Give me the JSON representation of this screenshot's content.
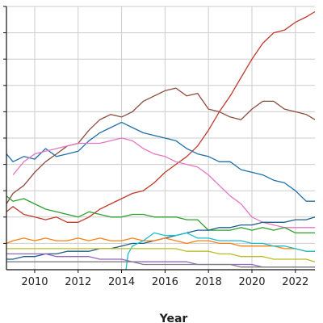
{
  "chart_data": {
    "type": "line",
    "title": "",
    "xlabel": "Year",
    "ylabel": "",
    "x_ticks": [
      "2010",
      "2012",
      "2014",
      "2016",
      "2018",
      "2020",
      "2022"
    ],
    "xlim": [
      2008.7,
      2022.9
    ],
    "ylim": [
      0,
      100
    ],
    "grid": true,
    "series": [
      {
        "color": "#c0392b",
        "points": [
          [
            2008.7,
            22
          ],
          [
            2009,
            24
          ],
          [
            2009.5,
            21
          ],
          [
            2010,
            20
          ],
          [
            2010.5,
            19
          ],
          [
            2011,
            20
          ],
          [
            2011.5,
            18
          ],
          [
            2012,
            18
          ],
          [
            2012.5,
            20
          ],
          [
            2013,
            23
          ],
          [
            2013.5,
            25
          ],
          [
            2014,
            27
          ],
          [
            2014.5,
            29
          ],
          [
            2015,
            30
          ],
          [
            2015.5,
            33
          ],
          [
            2016,
            37
          ],
          [
            2016.5,
            40
          ],
          [
            2017,
            43
          ],
          [
            2017.5,
            47
          ],
          [
            2018,
            53
          ],
          [
            2018.5,
            60
          ],
          [
            2019,
            66
          ],
          [
            2019.5,
            73
          ],
          [
            2020,
            80
          ],
          [
            2020.5,
            86
          ],
          [
            2021,
            90
          ],
          [
            2021.5,
            91
          ],
          [
            2022,
            94
          ],
          [
            2022.5,
            96
          ],
          [
            2022.9,
            98
          ]
        ]
      },
      {
        "color": "#8b4c3c",
        "points": [
          [
            2008.7,
            25
          ],
          [
            2009,
            29
          ],
          [
            2009.5,
            32
          ],
          [
            2010,
            37
          ],
          [
            2010.5,
            41
          ],
          [
            2011,
            44
          ],
          [
            2011.5,
            47
          ],
          [
            2012,
            48
          ],
          [
            2012.5,
            53
          ],
          [
            2013,
            57
          ],
          [
            2013.5,
            59
          ],
          [
            2014,
            58
          ],
          [
            2014.5,
            60
          ],
          [
            2015,
            64
          ],
          [
            2015.5,
            66
          ],
          [
            2016,
            68
          ],
          [
            2016.5,
            69
          ],
          [
            2017,
            66
          ],
          [
            2017.5,
            67
          ],
          [
            2018,
            61
          ],
          [
            2018.5,
            60
          ],
          [
            2019,
            58
          ],
          [
            2019.5,
            57
          ],
          [
            2020,
            61
          ],
          [
            2020.5,
            64
          ],
          [
            2021,
            64
          ],
          [
            2021.5,
            61
          ],
          [
            2022,
            60
          ],
          [
            2022.5,
            59
          ],
          [
            2022.9,
            57
          ]
        ]
      },
      {
        "color": "#1f6fa8",
        "points": [
          [
            2008.7,
            44
          ],
          [
            2009,
            41
          ],
          [
            2009.5,
            43
          ],
          [
            2010,
            42
          ],
          [
            2010.5,
            46
          ],
          [
            2011,
            43
          ],
          [
            2011.5,
            44
          ],
          [
            2012,
            45
          ],
          [
            2012.5,
            49
          ],
          [
            2013,
            52
          ],
          [
            2013.5,
            54
          ],
          [
            2014,
            56
          ],
          [
            2014.5,
            54
          ],
          [
            2015,
            52
          ],
          [
            2015.5,
            51
          ],
          [
            2016,
            50
          ],
          [
            2016.5,
            49
          ],
          [
            2017,
            46
          ],
          [
            2017.5,
            44
          ],
          [
            2018,
            43
          ],
          [
            2018.5,
            41
          ],
          [
            2019,
            41
          ],
          [
            2019.5,
            38
          ],
          [
            2020,
            37
          ],
          [
            2020.5,
            36
          ],
          [
            2021,
            34
          ],
          [
            2021.5,
            33
          ],
          [
            2022,
            30
          ],
          [
            2022.5,
            26
          ],
          [
            2022.9,
            26
          ]
        ]
      },
      {
        "color": "#e377c2",
        "points": [
          [
            2009,
            36
          ],
          [
            2009.5,
            41
          ],
          [
            2010,
            44
          ],
          [
            2010.5,
            45
          ],
          [
            2011,
            46
          ],
          [
            2011.5,
            47
          ],
          [
            2012,
            48
          ],
          [
            2012.5,
            48
          ],
          [
            2013,
            48
          ],
          [
            2013.5,
            49
          ],
          [
            2014,
            50
          ],
          [
            2014.5,
            49
          ],
          [
            2015,
            46
          ],
          [
            2015.5,
            44
          ],
          [
            2016,
            43
          ],
          [
            2016.5,
            41
          ],
          [
            2017,
            40
          ],
          [
            2017.5,
            39
          ],
          [
            2018,
            36
          ],
          [
            2018.5,
            32
          ],
          [
            2019,
            28
          ],
          [
            2019.5,
            25
          ],
          [
            2020,
            20
          ],
          [
            2020.5,
            18
          ],
          [
            2021,
            17
          ],
          [
            2021.5,
            16
          ],
          [
            2022,
            16
          ],
          [
            2022.5,
            16
          ],
          [
            2022.9,
            16
          ]
        ]
      },
      {
        "color": "#2ca02c",
        "points": [
          [
            2008.7,
            28
          ],
          [
            2009,
            26
          ],
          [
            2009.5,
            27
          ],
          [
            2010,
            25
          ],
          [
            2010.5,
            23
          ],
          [
            2011,
            22
          ],
          [
            2011.5,
            21
          ],
          [
            2012,
            20
          ],
          [
            2012.5,
            22
          ],
          [
            2013,
            21
          ],
          [
            2013.5,
            20
          ],
          [
            2014,
            20
          ],
          [
            2014.5,
            21
          ],
          [
            2015,
            21
          ],
          [
            2015.5,
            20
          ],
          [
            2016,
            20
          ],
          [
            2016.5,
            20
          ],
          [
            2017,
            19
          ],
          [
            2017.5,
            19
          ],
          [
            2018,
            15
          ],
          [
            2018.5,
            15
          ],
          [
            2019,
            15
          ],
          [
            2019.5,
            16
          ],
          [
            2020,
            15
          ],
          [
            2020.5,
            16
          ],
          [
            2021,
            15
          ],
          [
            2021.5,
            16
          ],
          [
            2022,
            14
          ],
          [
            2022.5,
            14
          ],
          [
            2022.9,
            14
          ]
        ]
      },
      {
        "color": "#1b5e8a",
        "points": [
          [
            2008.7,
            4
          ],
          [
            2009,
            4
          ],
          [
            2009.5,
            5
          ],
          [
            2010,
            5
          ],
          [
            2010.5,
            6
          ],
          [
            2011,
            6
          ],
          [
            2011.5,
            7
          ],
          [
            2012,
            7
          ],
          [
            2012.5,
            7
          ],
          [
            2013,
            8
          ],
          [
            2013.5,
            8
          ],
          [
            2014,
            9
          ],
          [
            2014.5,
            10
          ],
          [
            2015,
            10
          ],
          [
            2015.5,
            11
          ],
          [
            2016,
            12
          ],
          [
            2016.5,
            13
          ],
          [
            2017,
            14
          ],
          [
            2017.5,
            15
          ],
          [
            2018,
            15
          ],
          [
            2018.5,
            16
          ],
          [
            2019,
            16
          ],
          [
            2019.5,
            17
          ],
          [
            2020,
            17
          ],
          [
            2020.5,
            18
          ],
          [
            2021,
            18
          ],
          [
            2021.5,
            18
          ],
          [
            2022,
            19
          ],
          [
            2022.5,
            19
          ],
          [
            2022.9,
            20
          ]
        ]
      },
      {
        "color": "#ff7f0e",
        "points": [
          [
            2008.7,
            10
          ],
          [
            2009,
            11
          ],
          [
            2009.5,
            12
          ],
          [
            2010,
            11
          ],
          [
            2010.5,
            12
          ],
          [
            2011,
            11
          ],
          [
            2011.5,
            11
          ],
          [
            2012,
            12
          ],
          [
            2012.5,
            11
          ],
          [
            2013,
            12
          ],
          [
            2013.5,
            11
          ],
          [
            2014,
            11
          ],
          [
            2014.5,
            12
          ],
          [
            2015,
            11
          ],
          [
            2015.5,
            11
          ],
          [
            2016,
            12
          ],
          [
            2016.5,
            11
          ],
          [
            2017,
            10
          ],
          [
            2017.5,
            11
          ],
          [
            2018,
            11
          ],
          [
            2018.5,
            10
          ],
          [
            2019,
            10
          ],
          [
            2019.5,
            9
          ],
          [
            2020,
            9
          ],
          [
            2020.5,
            9
          ],
          [
            2021,
            9
          ],
          [
            2021.5,
            8
          ],
          [
            2022,
            8
          ],
          [
            2022.5,
            7
          ],
          [
            2022.9,
            7
          ]
        ]
      },
      {
        "color": "#17becf",
        "points": [
          [
            2014.2,
            0
          ],
          [
            2014.3,
            6
          ],
          [
            2014.5,
            9
          ],
          [
            2015,
            11
          ],
          [
            2015.5,
            14
          ],
          [
            2016,
            13
          ],
          [
            2016.5,
            13
          ],
          [
            2017,
            14
          ],
          [
            2017.5,
            12
          ],
          [
            2018,
            12
          ],
          [
            2018.5,
            11
          ],
          [
            2019,
            11
          ],
          [
            2019.5,
            11
          ],
          [
            2020,
            10
          ],
          [
            2020.5,
            10
          ],
          [
            2021,
            9
          ],
          [
            2021.5,
            9
          ],
          [
            2022,
            8
          ],
          [
            2022.5,
            7
          ],
          [
            2022.9,
            7
          ]
        ]
      },
      {
        "color": "#bcbd22",
        "points": [
          [
            2008.7,
            8
          ],
          [
            2009,
            8
          ],
          [
            2009.5,
            8
          ],
          [
            2010,
            8
          ],
          [
            2010.5,
            8
          ],
          [
            2011,
            8
          ],
          [
            2011.5,
            8
          ],
          [
            2012,
            8
          ],
          [
            2012.5,
            8
          ],
          [
            2013,
            8
          ],
          [
            2013.5,
            8
          ],
          [
            2014,
            8
          ],
          [
            2014.5,
            8
          ],
          [
            2015,
            8
          ],
          [
            2015.5,
            8
          ],
          [
            2016,
            8
          ],
          [
            2016.5,
            8
          ],
          [
            2017,
            7
          ],
          [
            2017.5,
            7
          ],
          [
            2018,
            7
          ],
          [
            2018.5,
            6
          ],
          [
            2019,
            6
          ],
          [
            2019.5,
            5
          ],
          [
            2020,
            5
          ],
          [
            2020.5,
            5
          ],
          [
            2021,
            4
          ],
          [
            2021.5,
            4
          ],
          [
            2022,
            4
          ],
          [
            2022.5,
            4
          ],
          [
            2022.9,
            3
          ]
        ]
      },
      {
        "color": "#9467bd",
        "points": [
          [
            2008.7,
            6
          ],
          [
            2009,
            6
          ],
          [
            2009.5,
            6
          ],
          [
            2010,
            6
          ],
          [
            2010.5,
            6
          ],
          [
            2011,
            5
          ],
          [
            2011.5,
            5
          ],
          [
            2012,
            5
          ],
          [
            2012.5,
            5
          ],
          [
            2013,
            4
          ],
          [
            2013.5,
            4
          ],
          [
            2014,
            4
          ],
          [
            2014.5,
            3
          ],
          [
            2015,
            3
          ],
          [
            2015.5,
            3
          ],
          [
            2016,
            3
          ],
          [
            2016.5,
            3
          ],
          [
            2017,
            3
          ],
          [
            2017.5,
            2
          ],
          [
            2018,
            2
          ],
          [
            2018.5,
            2
          ],
          [
            2019,
            2
          ],
          [
            2019.5,
            2
          ],
          [
            2020,
            2
          ],
          [
            2020.5,
            1
          ],
          [
            2021,
            1
          ],
          [
            2021.5,
            1
          ],
          [
            2022,
            1
          ],
          [
            2022.5,
            1
          ],
          [
            2022.9,
            1
          ]
        ]
      },
      {
        "color": "#7f7f7f",
        "points": [
          [
            2008.7,
            3
          ],
          [
            2009,
            3
          ],
          [
            2009.5,
            3
          ],
          [
            2010,
            3
          ],
          [
            2010.5,
            3
          ],
          [
            2011,
            3
          ],
          [
            2011.5,
            3
          ],
          [
            2012,
            3
          ],
          [
            2012.5,
            3
          ],
          [
            2013,
            3
          ],
          [
            2013.5,
            3
          ],
          [
            2014,
            3
          ],
          [
            2014.5,
            3
          ],
          [
            2015,
            2
          ],
          [
            2015.5,
            2
          ],
          [
            2016,
            2
          ],
          [
            2016.5,
            2
          ],
          [
            2017,
            2
          ],
          [
            2017.5,
            2
          ],
          [
            2018,
            2
          ],
          [
            2018.5,
            2
          ],
          [
            2019,
            2
          ],
          [
            2019.5,
            1
          ],
          [
            2020,
            1
          ],
          [
            2020.5,
            1
          ],
          [
            2021,
            1
          ],
          [
            2021.5,
            1
          ],
          [
            2022,
            1
          ],
          [
            2022.5,
            1
          ],
          [
            2022.9,
            1
          ]
        ]
      }
    ]
  }
}
